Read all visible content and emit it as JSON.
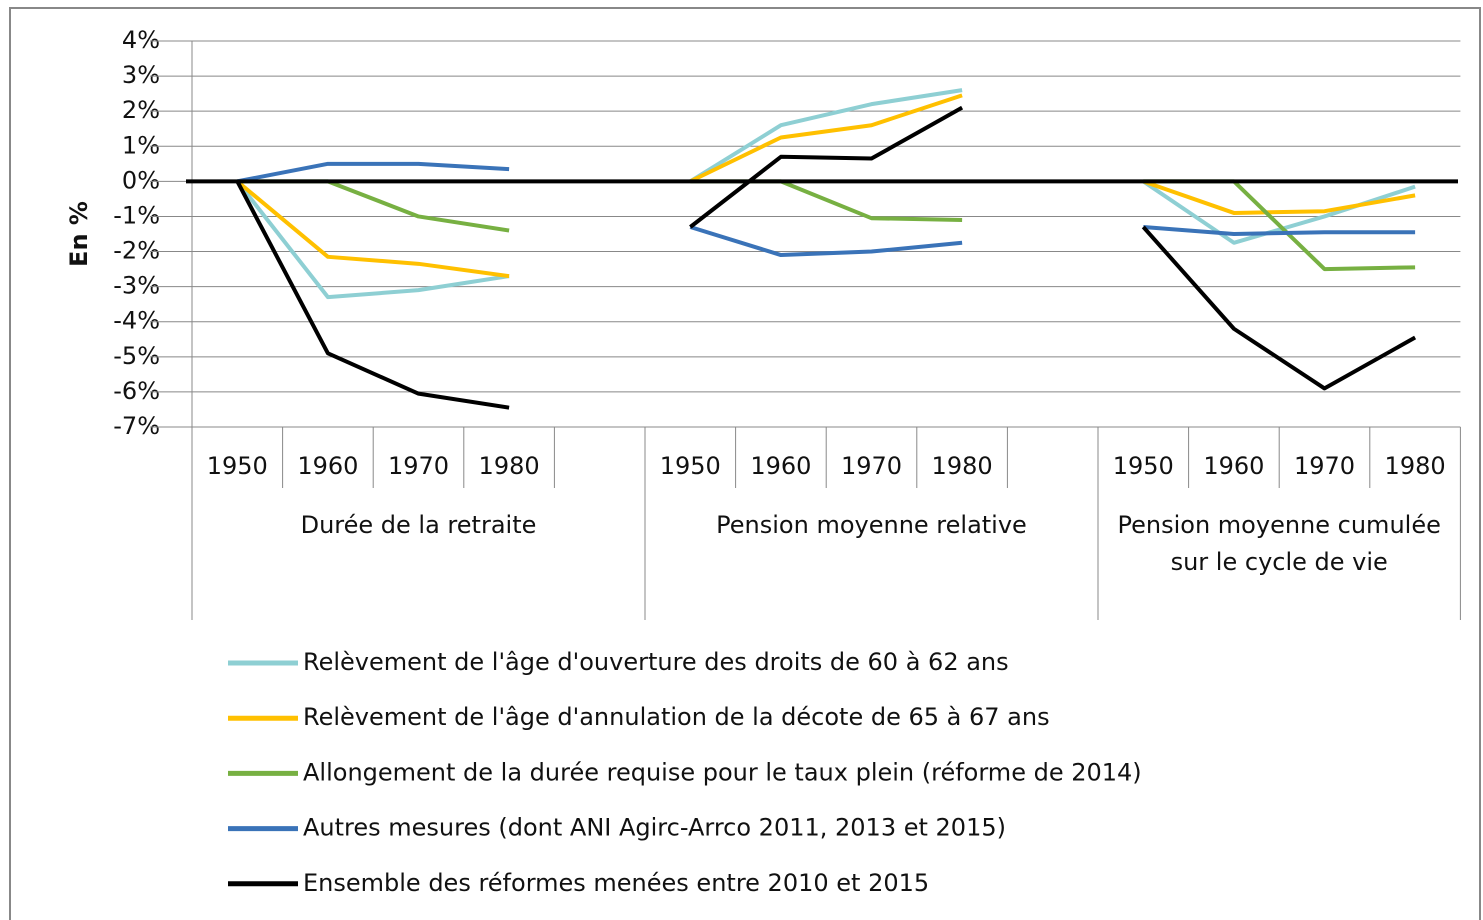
{
  "chart_data": {
    "type": "line",
    "y_label": "En %",
    "categories": [
      "1950",
      "1960",
      "1970",
      "1980",
      null,
      "1950",
      "1960",
      "1970",
      "1980",
      null,
      "1950",
      "1960",
      "1970",
      "1980"
    ],
    "groups": [
      "Durée de la retraite",
      "Pension moyenne relative",
      "Pension moyenne cumulée sur le cycle de vie"
    ],
    "ylim": [
      -7,
      4
    ],
    "yticks": [
      {
        "value": -7,
        "label": "-7%"
      },
      {
        "value": -6,
        "label": "-6%"
      },
      {
        "value": -5,
        "label": "-5%"
      },
      {
        "value": -4,
        "label": "-4%"
      },
      {
        "value": -3,
        "label": "-3%"
      },
      {
        "value": -2,
        "label": "-2%"
      },
      {
        "value": -1,
        "label": "-1%"
      },
      {
        "value": 0,
        "label": "0%"
      },
      {
        "value": 1,
        "label": "1%"
      },
      {
        "value": 2,
        "label": "2%"
      },
      {
        "value": 3,
        "label": "3%"
      },
      {
        "value": 4,
        "label": "4%"
      }
    ],
    "grid": true,
    "legend": "bottom",
    "series": [
      {
        "name": "Relèvement de l'âge d'ouverture des droits de 60 à 62 ans",
        "color": "#8ecfd3",
        "values": [
          0,
          -3.3,
          -3.1,
          -2.7,
          null,
          0,
          1.6,
          2.2,
          2.6,
          null,
          0,
          -1.75,
          -1.0,
          -0.15
        ]
      },
      {
        "name": "Relèvement de l'âge d'annulation de la décote de 65 à 67 ans",
        "color": "#ffc000",
        "values": [
          0,
          -2.15,
          -2.35,
          -2.7,
          null,
          0,
          1.25,
          1.6,
          2.45,
          null,
          0,
          -0.9,
          -0.85,
          -0.4
        ]
      },
      {
        "name": "Allongement de la durée requise pour le taux plein (réforme de 2014)",
        "color": "#77b042",
        "values": [
          0,
          0,
          -1.0,
          -1.4,
          null,
          0,
          0,
          -1.05,
          -1.1,
          null,
          0,
          0,
          -2.5,
          -2.45
        ]
      },
      {
        "name": "Autres mesures (dont ANI Agirc-Arrco 2011, 2013 et 2015)",
        "color": "#3a73b8",
        "values": [
          0,
          0.5,
          0.5,
          0.35,
          null,
          -1.3,
          -2.1,
          -2.0,
          -1.75,
          null,
          -1.3,
          -1.5,
          -1.45,
          -1.45
        ]
      },
      {
        "name": "Ensemble des réformes menées entre 2010 et 2015",
        "color": "#000000",
        "values": [
          0,
          -4.9,
          -6.05,
          -6.45,
          null,
          -1.3,
          0.7,
          0.65,
          2.1,
          null,
          -1.3,
          -4.2,
          -5.9,
          -4.45
        ]
      }
    ]
  }
}
